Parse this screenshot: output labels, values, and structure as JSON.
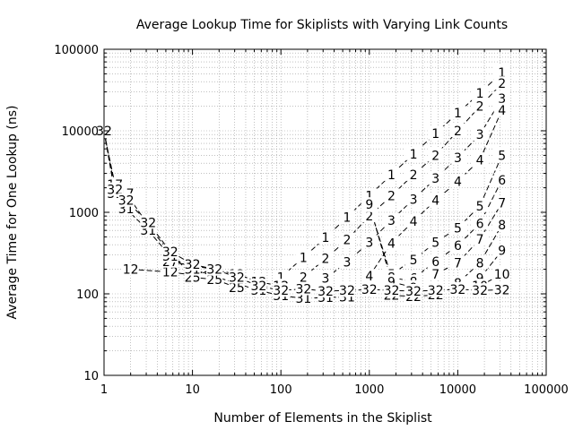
{
  "chart_data": {
    "type": "line",
    "title": "Average Lookup Time for Skiplists with Varying Link Counts",
    "xlabel": "Number of Elements in the Skiplist",
    "ylabel": "Average Time for One Lookup (ns)",
    "xscale": "log",
    "yscale": "log",
    "xlim": [
      1,
      100000
    ],
    "ylim": [
      10,
      100000
    ],
    "grid": true,
    "x_ticks": [
      1,
      10,
      100,
      1000,
      10000,
      100000
    ],
    "x_tick_labels": [
      "1",
      "10",
      "100",
      "1000",
      "10000",
      "100000"
    ],
    "y_ticks": [
      10,
      100,
      1000,
      10000,
      100000
    ],
    "y_tick_labels": [
      "10",
      "100",
      "1000",
      "10000",
      "100000"
    ],
    "series": [
      {
        "name": "1",
        "points": [
          [
            100,
            160
          ],
          [
            180,
            280
          ],
          [
            320,
            490
          ],
          [
            560,
            870
          ],
          [
            1000,
            1600
          ],
          [
            1780,
            2900
          ],
          [
            3160,
            5200
          ],
          [
            5620,
            9300
          ],
          [
            10000,
            16500
          ],
          [
            17800,
            29000
          ],
          [
            31600,
            52000
          ]
        ]
      },
      {
        "name": "2",
        "points": [
          [
            180,
            160
          ],
          [
            320,
            270
          ],
          [
            560,
            460
          ],
          [
            1000,
            900
          ],
          [
            1780,
            1600
          ],
          [
            3160,
            2900
          ],
          [
            5620,
            5000
          ],
          [
            10000,
            10000
          ],
          [
            17800,
            20000
          ],
          [
            31600,
            38000
          ]
        ]
      },
      {
        "name": "3",
        "points": [
          [
            320,
            155
          ],
          [
            560,
            245
          ],
          [
            1000,
            430
          ],
          [
            1780,
            800
          ],
          [
            3160,
            1450
          ],
          [
            5620,
            2600
          ],
          [
            10000,
            4700
          ],
          [
            17800,
            9000
          ],
          [
            31600,
            25000
          ]
        ]
      },
      {
        "name": "4",
        "points": [
          [
            1000,
            165
          ],
          [
            1780,
            420
          ],
          [
            3160,
            780
          ],
          [
            5620,
            1400
          ],
          [
            10000,
            2400
          ],
          [
            17800,
            4400
          ],
          [
            31600,
            18000
          ]
        ]
      },
      {
        "name": "5",
        "points": [
          [
            1780,
            175
          ],
          [
            3160,
            260
          ],
          [
            5620,
            430
          ],
          [
            10000,
            640
          ],
          [
            17800,
            1200
          ],
          [
            31600,
            5000
          ]
        ]
      },
      {
        "name": "6",
        "points": [
          [
            3160,
            155
          ],
          [
            5620,
            250
          ],
          [
            10000,
            390
          ],
          [
            17800,
            730
          ],
          [
            31600,
            2500
          ]
        ]
      },
      {
        "name": "7",
        "points": [
          [
            5620,
            175
          ],
          [
            10000,
            240
          ],
          [
            17800,
            470
          ],
          [
            31600,
            1300
          ]
        ]
      },
      {
        "name": "8",
        "points": [
          [
            10000,
            135
          ],
          [
            17800,
            240
          ],
          [
            31600,
            700
          ]
        ]
      },
      {
        "name": "9",
        "points": [
          [
            17800,
            155
          ],
          [
            31600,
            340
          ]
        ]
      },
      {
        "name": "10",
        "points": [
          [
            17800,
            125
          ],
          [
            31600,
            175
          ]
        ]
      },
      {
        "name": "12",
        "points": [
          [
            2,
            200
          ],
          [
            5.6,
            185
          ],
          [
            10,
            170
          ],
          [
            17.8,
            195
          ],
          [
            31.6,
            175
          ],
          [
            56,
            140
          ],
          [
            100,
            125
          ]
        ]
      },
      {
        "name": "8",
        "points": [
          [
            1000,
            1200
          ],
          [
            1780,
            160
          ],
          [
            3160,
            140
          ]
        ]
      },
      {
        "name": "9",
        "points": [
          [
            1000,
            1250
          ],
          [
            1780,
            140
          ],
          [
            3160,
            120
          ]
        ]
      },
      {
        "name": "17",
        "points": [
          [
            1,
            9500
          ],
          [
            1.33,
            2200
          ],
          [
            1.78,
            1700
          ],
          [
            3.16,
            700
          ],
          [
            5.6,
            310
          ],
          [
            10,
            170
          ],
          [
            17.8,
            200
          ]
        ]
      },
      {
        "name": "22",
        "points": [
          [
            1780,
            96
          ],
          [
            3160,
            93
          ],
          [
            5620,
            97
          ]
        ]
      },
      {
        "name": "25",
        "points": [
          [
            10,
            160
          ],
          [
            17.8,
            150
          ],
          [
            31.6,
            120
          ]
        ]
      },
      {
        "name": "27",
        "points": [
          [
            5.6,
            250
          ],
          [
            10,
            220
          ],
          [
            17.8,
            200
          ]
        ]
      },
      {
        "name": "31",
        "points": [
          [
            1,
            9800
          ],
          [
            1.33,
            1700
          ],
          [
            1.78,
            1100
          ],
          [
            3.16,
            600
          ],
          [
            5.6,
            290
          ],
          [
            10,
            200
          ],
          [
            56,
            110
          ],
          [
            100,
            95
          ],
          [
            180,
            88
          ],
          [
            320,
            90
          ],
          [
            560,
            92
          ]
        ]
      },
      {
        "name": "32",
        "points": [
          [
            1,
            10000
          ],
          [
            1.33,
            1900
          ],
          [
            1.78,
            1400
          ],
          [
            3.16,
            750
          ],
          [
            5.6,
            330
          ],
          [
            10,
            230
          ],
          [
            17.8,
            200
          ],
          [
            31.6,
            160
          ],
          [
            56,
            125
          ],
          [
            100,
            110
          ],
          [
            180,
            115
          ],
          [
            320,
            108
          ],
          [
            560,
            110
          ],
          [
            1000,
            113
          ],
          [
            1780,
            110
          ],
          [
            3160,
            108
          ],
          [
            5620,
            110
          ],
          [
            10000,
            114
          ],
          [
            17800,
            110
          ],
          [
            31600,
            112
          ]
        ]
      }
    ]
  }
}
